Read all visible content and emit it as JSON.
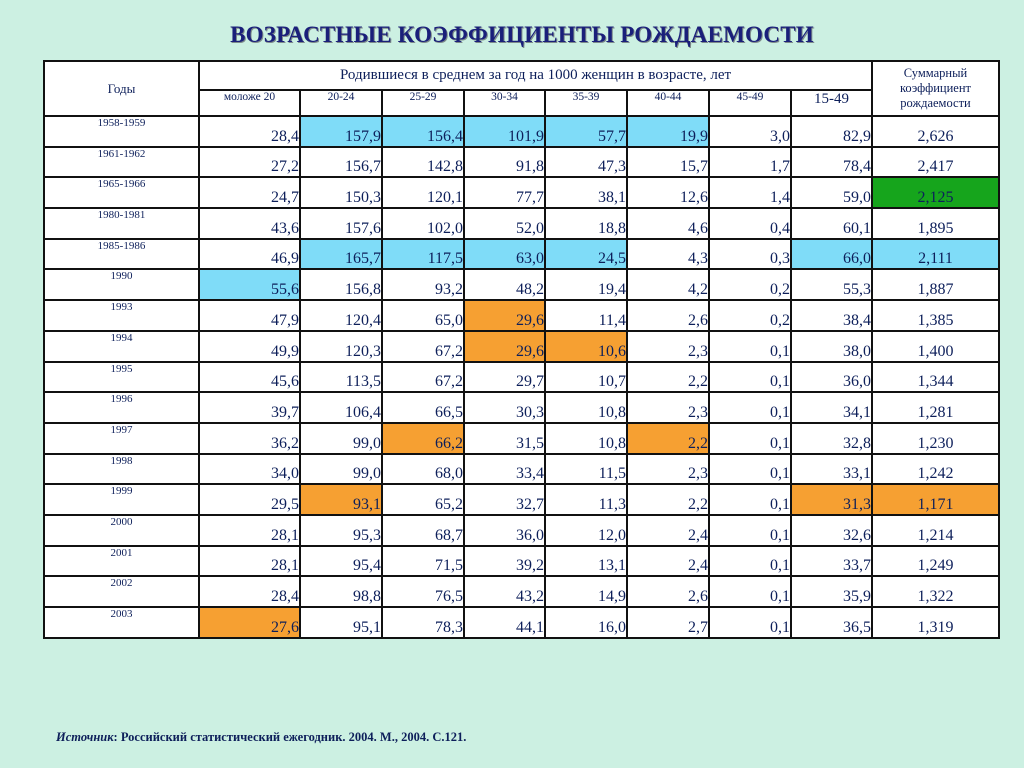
{
  "title": "ВОЗРАСТНЫЕ КОЭФФИЦИЕНТЫ РОЖДАЕМОСТИ",
  "header": {
    "years": "Годы",
    "group": "Родившиеся в среднем за год  на 1000 женщин в возрасте, лет",
    "tfr_line1": "Суммарный",
    "tfr_line2": "коэффициент",
    "tfr_line3": "рождаемости",
    "ages": [
      "моложе 20",
      "20-24",
      "25-29",
      "30-34",
      "35-39",
      "40-44",
      "45-49",
      "15-49"
    ]
  },
  "colors": {
    "background": "#ccf0e2",
    "highlight_blue": "#7fdcf8",
    "highlight_orange": "#f6a032",
    "highlight_green": "#16a51c"
  },
  "rows": [
    {
      "year": "1958-1959",
      "values": [
        "28,4",
        "157,9",
        "156,4",
        "101,9",
        "57,7",
        "19,9",
        "3,0",
        "82,9"
      ],
      "tfr": "2,626"
    },
    {
      "year": "1961-1962",
      "values": [
        "27,2",
        "156,7",
        "142,8",
        "91,8",
        "47,3",
        "15,7",
        "1,7",
        "78,4"
      ],
      "tfr": "2,417"
    },
    {
      "year": "1965-1966",
      "values": [
        "24,7",
        "150,3",
        "120,1",
        "77,7",
        "38,1",
        "12,6",
        "1,4",
        "59,0"
      ],
      "tfr": "2,125"
    },
    {
      "year": "1980-1981",
      "values": [
        "43,6",
        "157,6",
        "102,0",
        "52,0",
        "18,8",
        "4,6",
        "0,4",
        "60,1"
      ],
      "tfr": "1,895"
    },
    {
      "year": "1985-1986",
      "values": [
        "46,9",
        "165,7",
        "117,5",
        "63,0",
        "24,5",
        "4,3",
        "0,3",
        "66,0"
      ],
      "tfr": "2,111"
    },
    {
      "year": "1990",
      "values": [
        "55,6",
        "156,8",
        "93,2",
        "48,2",
        "19,4",
        "4,2",
        "0,2",
        "55,3"
      ],
      "tfr": "1,887"
    },
    {
      "year": "1993",
      "values": [
        "47,9",
        "120,4",
        "65,0",
        "29,6",
        "11,4",
        "2,6",
        "0,2",
        "38,4"
      ],
      "tfr": "1,385"
    },
    {
      "year": "1994",
      "values": [
        "49,9",
        "120,3",
        "67,2",
        "29,6",
        "10,6",
        "2,3",
        "0,1",
        "38,0"
      ],
      "tfr": "1,400"
    },
    {
      "year": "1995",
      "values": [
        "45,6",
        "113,5",
        "67,2",
        "29,7",
        "10,7",
        "2,2",
        "0,1",
        "36,0"
      ],
      "tfr": "1,344"
    },
    {
      "year": "1996",
      "values": [
        "39,7",
        "106,4",
        "66,5",
        "30,3",
        "10,8",
        "2,3",
        "0,1",
        "34,1"
      ],
      "tfr": "1,281"
    },
    {
      "year": "1997",
      "values": [
        "36,2",
        "99,0",
        "66,2",
        "31,5",
        "10,8",
        "2,2",
        "0,1",
        "32,8"
      ],
      "tfr": "1,230"
    },
    {
      "year": "1998",
      "values": [
        "34,0",
        "99,0",
        "68,0",
        "33,4",
        "11,5",
        "2,3",
        "0,1",
        "33,1"
      ],
      "tfr": "1,242"
    },
    {
      "year": "1999",
      "values": [
        "29,5",
        "93,1",
        "65,2",
        "32,7",
        "11,3",
        "2,2",
        "0,1",
        "31,3"
      ],
      "tfr": "1,171"
    },
    {
      "year": "2000",
      "values": [
        "28,1",
        "95,3",
        "68,7",
        "36,0",
        "12,0",
        "2,4",
        "0,1",
        "32,6"
      ],
      "tfr": "1,214"
    },
    {
      "year": "2001",
      "values": [
        "28,1",
        "95,4",
        "71,5",
        "39,2",
        "13,1",
        "2,4",
        "0,1",
        "33,7"
      ],
      "tfr": "1,249"
    },
    {
      "year": "2002",
      "values": [
        "28,4",
        "98,8",
        "76,5",
        "43,2",
        "14,9",
        "2,6",
        "0,1",
        "35,9"
      ],
      "tfr": "1,322"
    },
    {
      "year": "2003",
      "values": [
        "27,6",
        "95,1",
        "78,3",
        "44,1",
        "16,0",
        "2,7",
        "0,1",
        "36,5"
      ],
      "tfr": "1,319"
    }
  ],
  "source": {
    "label": "Источник",
    "text": ": Российский статистический ежегодник. 2004. М., 2004. С.121."
  }
}
